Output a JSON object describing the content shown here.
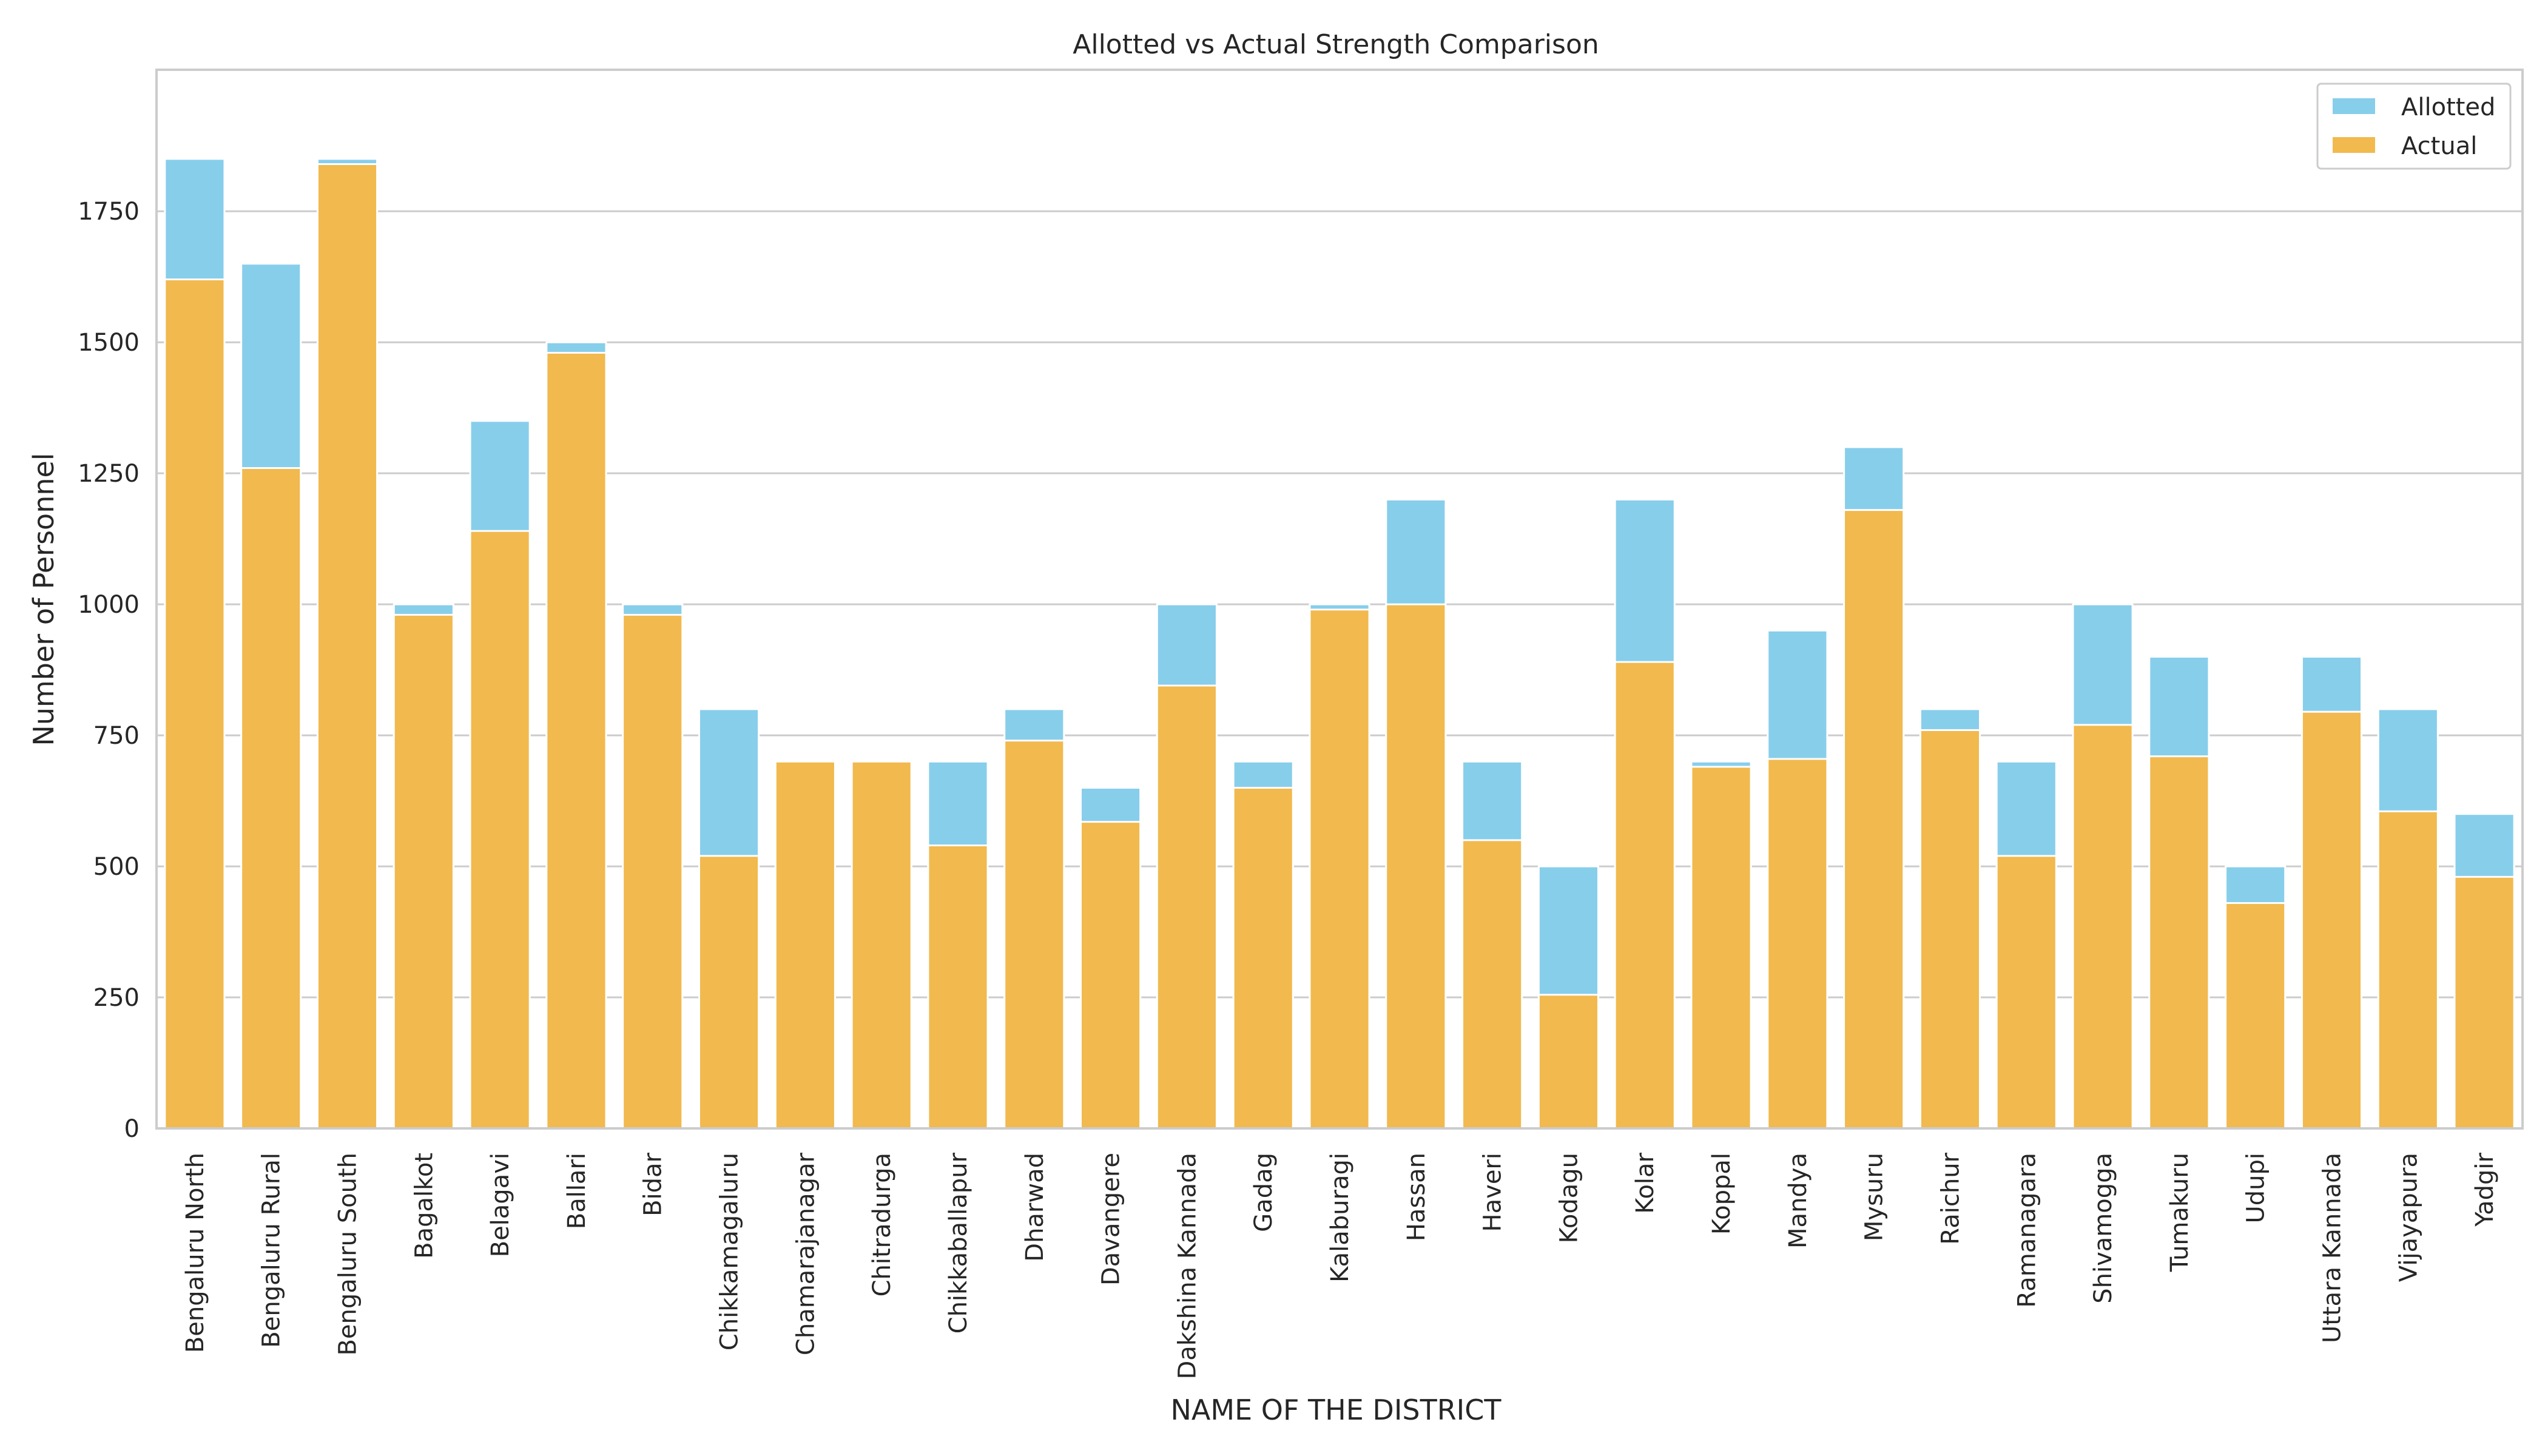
{
  "chart_data": {
    "type": "bar",
    "title": "Allotted vs Actual Strength Comparison",
    "xlabel": "NAME OF THE DISTRICT",
    "ylabel": "Number of Personnel",
    "ylim": [
      0,
      2020
    ],
    "yticks": [
      0,
      250,
      500,
      750,
      1000,
      1250,
      1500,
      1750
    ],
    "grid": "horizontal",
    "legend_position": "top-right",
    "bar_mode": "overlaid",
    "categories": [
      "Bengaluru North",
      "Bengaluru Rural",
      "Bengaluru South",
      "Bagalkot",
      "Belagavi",
      "Ballari",
      "Bidar",
      "Chikkamagaluru",
      "Chamarajanagar",
      "Chitradurga",
      "Chikkaballapur",
      "Dharwad",
      "Davangere",
      "Dakshina Kannada",
      "Gadag",
      "Kalaburagi",
      "Hassan",
      "Haveri",
      "Kodagu",
      "Kolar",
      "Koppal",
      "Mandya",
      "Mysuru",
      "Raichur",
      "Ramanagara",
      "Shivamogga",
      "Tumakuru",
      "Udupi",
      "Uttara Kannada",
      "Vijayapura",
      "Yadgir"
    ],
    "series": [
      {
        "name": "Allotted",
        "color": "#87ceeb",
        "values": [
          1850,
          1650,
          1850,
          1000,
          1350,
          1500,
          1000,
          800,
          700,
          700,
          700,
          800,
          650,
          1000,
          700,
          1000,
          1200,
          700,
          500,
          1200,
          700,
          950,
          1300,
          800,
          700,
          1000,
          900,
          500,
          900,
          800,
          600
        ]
      },
      {
        "name": "Actual",
        "color": "#f1b94e",
        "values": [
          1620,
          1260,
          1840,
          980,
          1140,
          1480,
          980,
          520,
          700,
          700,
          540,
          740,
          585,
          845,
          650,
          990,
          1000,
          550,
          255,
          890,
          690,
          705,
          1180,
          760,
          520,
          770,
          710,
          430,
          795,
          605,
          480
        ]
      }
    ]
  }
}
